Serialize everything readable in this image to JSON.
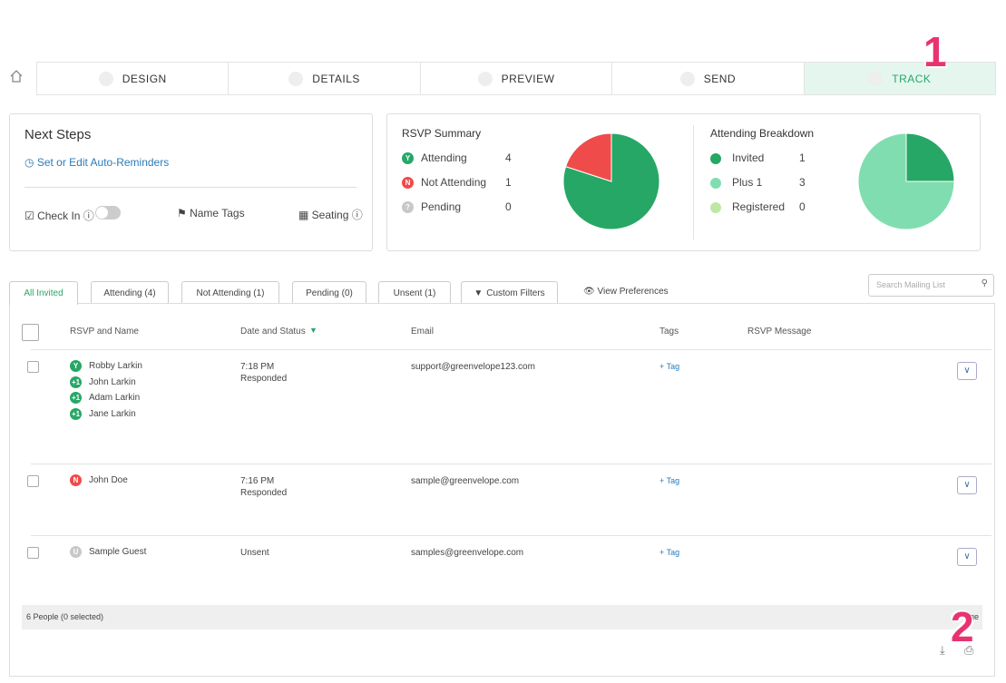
{
  "nav": {
    "steps": [
      "DESIGN",
      "DETAILS",
      "PREVIEW",
      "SEND",
      "TRACK"
    ],
    "annotation": "1"
  },
  "next_steps": {
    "title": "Next Steps",
    "reminder_link": "Set or Edit Auto-Reminders",
    "check_in": "Check In",
    "name_tags": "Name Tags",
    "seating": "Seating"
  },
  "rsvp_summary": {
    "title": "RSVP Summary",
    "items": [
      {
        "badge": "Y",
        "label": "Attending",
        "count": 4,
        "color": "#27a765"
      },
      {
        "badge": "N",
        "label": "Not Attending",
        "count": 1,
        "color": "#ef4b4b"
      },
      {
        "badge": "?",
        "label": "Pending",
        "count": 0,
        "color": "#c8c8c8"
      }
    ]
  },
  "attending_breakdown": {
    "title": "Attending Breakdown",
    "items": [
      {
        "label": "Invited",
        "count": 1,
        "color": "#27a765"
      },
      {
        "label": "Plus 1",
        "count": 3,
        "color": "#80ddb0"
      },
      {
        "label": "Registered",
        "count": 0,
        "color": "#bde8a4"
      }
    ]
  },
  "tabs": [
    "All Invited",
    "Attending (4)",
    "Not Attending (1)",
    "Pending (0)",
    "Unsent (1)",
    "Custom Filters"
  ],
  "view_preferences": "View Preferences",
  "search_placeholder": "Search Mailing List",
  "table": {
    "columns": [
      "RSVP and Name",
      "Date and Status",
      "Email",
      "Tags",
      "RSVP Message"
    ],
    "rows": [
      {
        "guests": [
          {
            "badge": "Y",
            "name": "Robby Larkin"
          },
          {
            "badge": "+1",
            "name": "John Larkin"
          },
          {
            "badge": "+1",
            "name": "Adam Larkin"
          },
          {
            "badge": "+1",
            "name": "Jane Larkin"
          }
        ],
        "time": "7:18 PM",
        "status": "Responded",
        "email": "support@greenvelope123.com",
        "tag": "+ Tag"
      },
      {
        "guests": [
          {
            "badge": "N",
            "name": "John Doe"
          }
        ],
        "time": "7:16 PM",
        "status": "Responded",
        "email": "sample@greenvelope.com",
        "tag": "+ Tag"
      },
      {
        "guests": [
          {
            "badge": "U",
            "name": "Sample Guest"
          }
        ],
        "status": "Unsent",
        "email": "samples@greenvelope.com",
        "tag": "+ Tag"
      }
    ]
  },
  "footer": {
    "count": "6 People (0 selected)",
    "page": "Page",
    "annotation": "2"
  }
}
